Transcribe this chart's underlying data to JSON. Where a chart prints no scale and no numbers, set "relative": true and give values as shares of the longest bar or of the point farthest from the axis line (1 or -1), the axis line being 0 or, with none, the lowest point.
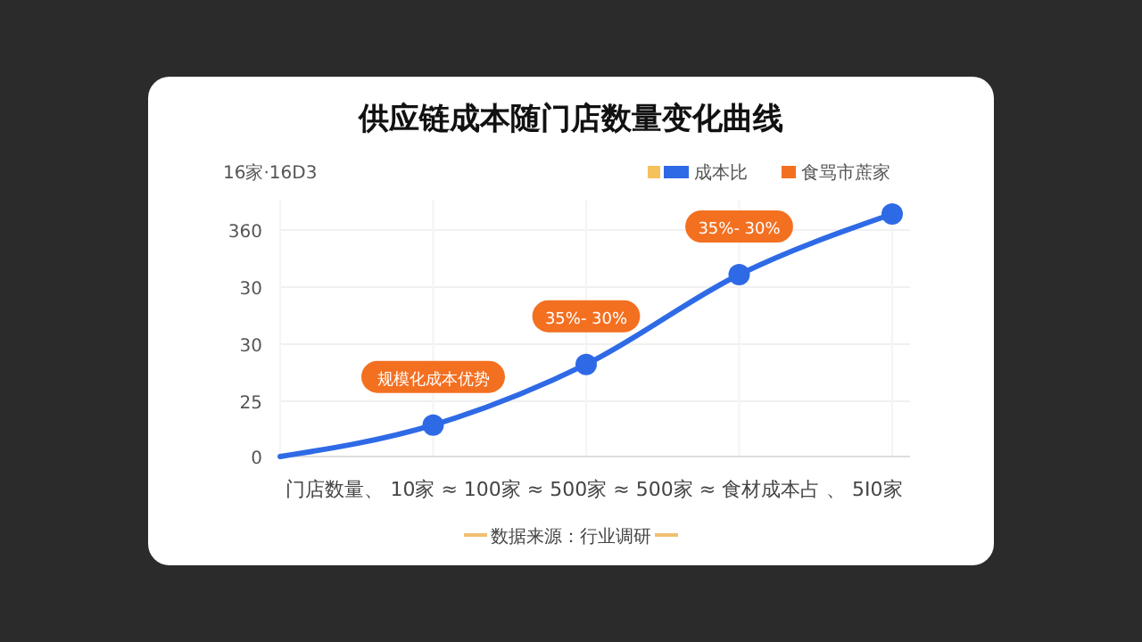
{
  "chart_data": {
    "type": "line",
    "title": "供应链成本随门店数量变化曲线",
    "ylabel": "16家·16D3",
    "xlabel": "门店数量、 10家 ≈ 100家 ≈ 500家 ≈ 500家 ≈ 食材成本占 、 5I0家",
    "categories": [
      null,
      null,
      null,
      null,
      null
    ],
    "relative": true,
    "series": [
      {
        "name": "成本比",
        "color": "#2f6ae6",
        "values": [
          0,
          0.13,
          0.38,
          0.75,
          1
        ]
      },
      {
        "name": "食骂市蔗家",
        "color": "#f37021",
        "values": [
          null,
          null,
          null,
          null,
          null
        ]
      }
    ],
    "grid": true,
    "legend": "top right",
    "marker": "circle",
    "line_style": "solid",
    "annotations": [
      "0",
      "25",
      "30",
      "30",
      "360",
      "规模化成本优势",
      "35%- 30%",
      "35%- 30%",
      "数据来源：行业调研"
    ]
  }
}
